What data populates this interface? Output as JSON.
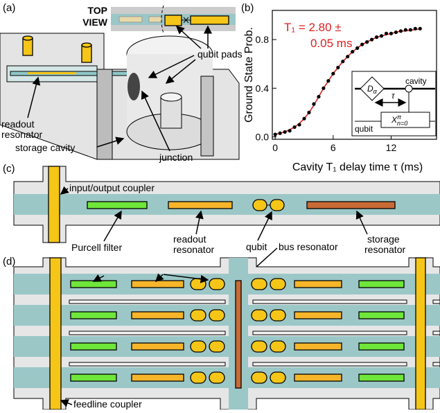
{
  "panel_a": {
    "label": "(a)",
    "top_view": [
      "TOP",
      "VIEW"
    ],
    "qubit_pads": "qubit pads",
    "readout_resonator": [
      "readout",
      "resonator"
    ],
    "storage_cavity": "storage cavity",
    "junction": "junction"
  },
  "panel_b_label": "(b)",
  "chart_data": {
    "type": "scatter",
    "x_label": "Cavity T₁ delay time τ (ms)",
    "y_label": "Ground State Prob.",
    "annotation": [
      "T₁ =  2.80 ±",
      "0.05 ms"
    ],
    "x": [
      0,
      0.5,
      1,
      1.5,
      2,
      2.5,
      3,
      3.5,
      4,
      4.5,
      5,
      5.5,
      6,
      6.5,
      7,
      7.5,
      8,
      8.5,
      9,
      9.5,
      10,
      10.5,
      11,
      11.5,
      12,
      12.5,
      13,
      13.5,
      14,
      14.5,
      15
    ],
    "series": [
      {
        "color": "#000000",
        "values": [
          0.02,
          0.03,
          0.04,
          0.05,
          0.08,
          0.1,
          0.15,
          0.2,
          0.27,
          0.33,
          0.4,
          0.46,
          0.52,
          0.57,
          0.62,
          0.66,
          0.7,
          0.73,
          0.76,
          0.78,
          0.8,
          0.82,
          0.83,
          0.85,
          0.85,
          0.86,
          0.87,
          0.88,
          0.88,
          0.89,
          0.89
        ]
      },
      {
        "color": "#d62020",
        "values": [
          0.02,
          0.03,
          0.04,
          0.06,
          0.08,
          0.11,
          0.15,
          0.2,
          0.26,
          0.33,
          0.4,
          0.46,
          0.52,
          0.57,
          0.62,
          0.66,
          0.7,
          0.73,
          0.76,
          0.78,
          0.8,
          0.82,
          0.83,
          0.84,
          0.85,
          0.86,
          0.87,
          0.87,
          0.88,
          0.88,
          0.89
        ]
      }
    ],
    "xlim": [
      -0.3,
      16.7
    ],
    "ylim": [
      -0.02,
      1.04
    ],
    "xticks": [
      0,
      6,
      12
    ],
    "yticks": [
      {
        "value": 0,
        "label": "0.0"
      },
      0.4,
      0.8
    ],
    "inset": {
      "gate1": "D",
      "gate1_sub": "α",
      "tau": "τ",
      "cavity": "cavity",
      "gate2": "X",
      "gate2_sup": "π",
      "gate2_sub": "n=0",
      "qubit": "qubit"
    }
  },
  "panel_c": {
    "label": "(c)",
    "coupler": "input/output coupler",
    "purcell": "Purcell filter",
    "readout": [
      "readout",
      "resonator"
    ],
    "qubit": "qubit",
    "bus": "bus resonator",
    "storage": [
      "storage",
      "resonator"
    ]
  },
  "panel_d": {
    "label": "(d)",
    "feedline": "feedline coupler"
  }
}
